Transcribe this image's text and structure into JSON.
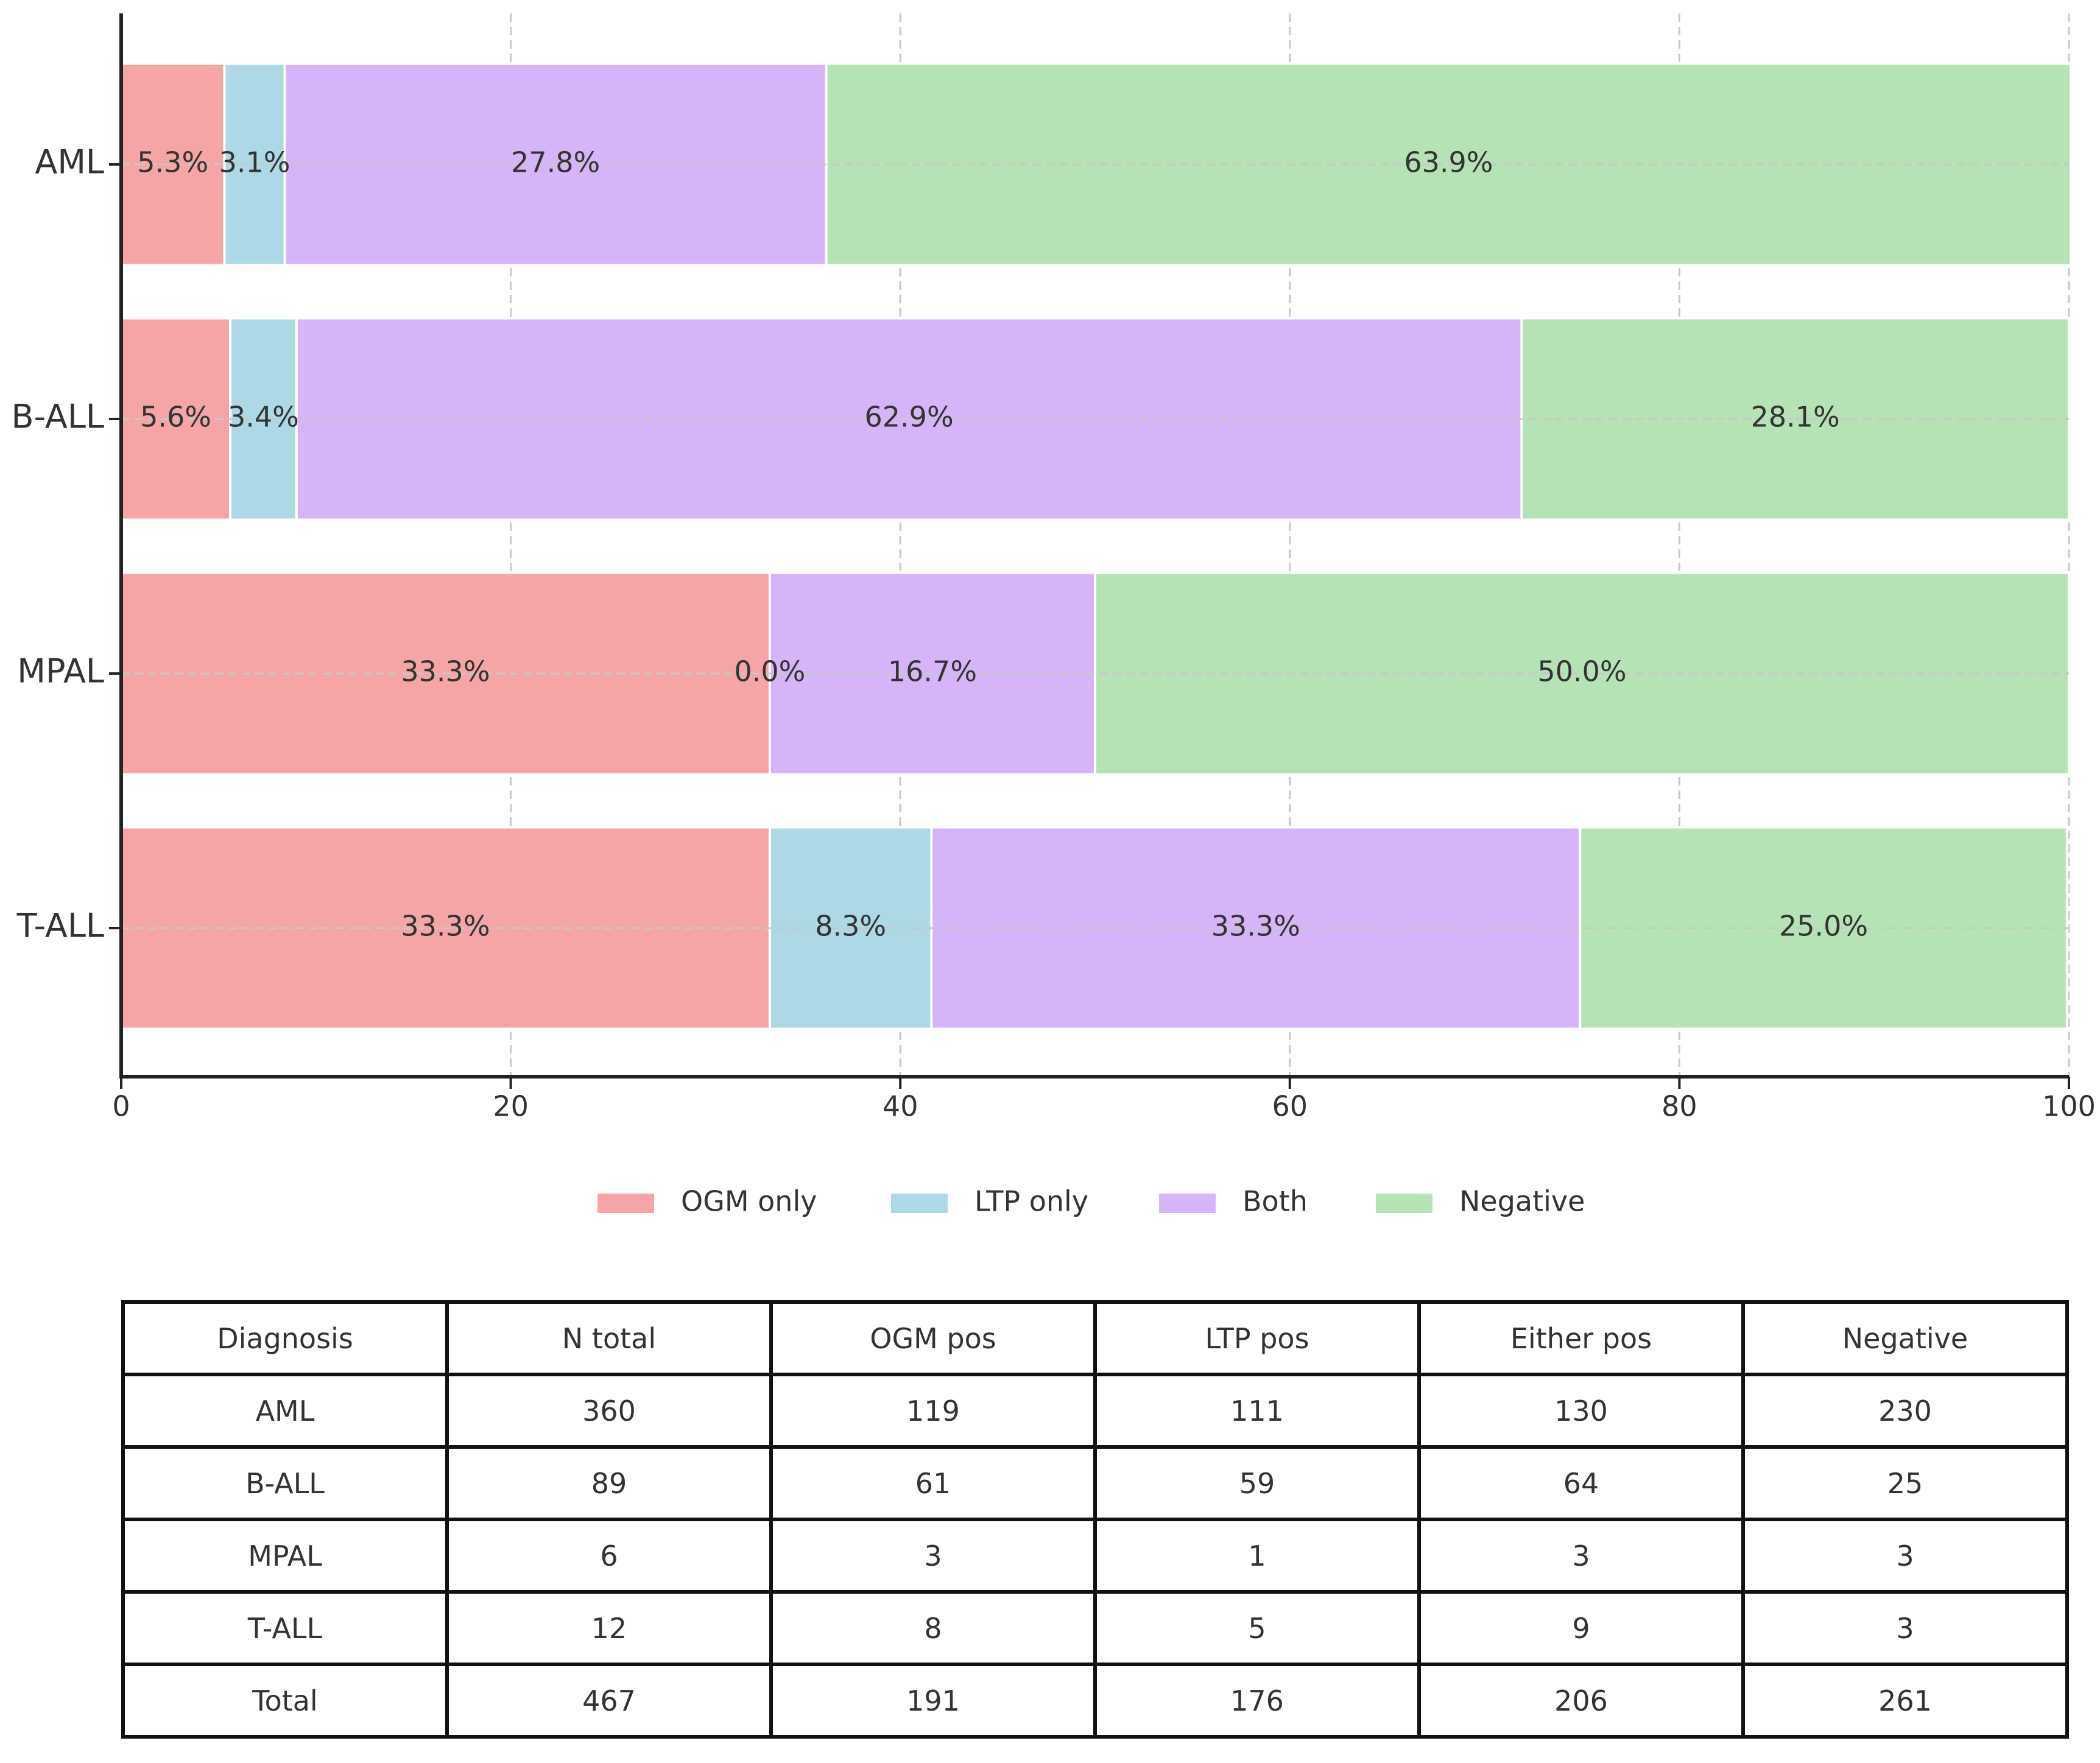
{
  "chart_data": {
    "type": "stacked_barh",
    "categories": [
      "AML",
      "B-ALL",
      "MPAL",
      "T-ALL"
    ],
    "series": [
      {
        "name": "OGM only",
        "color": "#f5a5a5",
        "values": [
          5.3,
          5.6,
          33.3,
          33.3
        ],
        "value_labels": [
          "5.3%",
          "5.6%",
          "33.3%",
          "33.3%"
        ]
      },
      {
        "name": "LTP only",
        "color": "#add8e6",
        "values": [
          3.1,
          3.4,
          0.0,
          8.3
        ],
        "value_labels": [
          "3.1%",
          "3.4%",
          "0.0%",
          "8.3%"
        ]
      },
      {
        "name": "Both",
        "color": "#d6b4f8",
        "values": [
          27.8,
          62.9,
          16.7,
          33.3
        ],
        "value_labels": [
          "27.8%",
          "62.9%",
          "16.7%",
          "33.3%"
        ]
      },
      {
        "name": "Negative",
        "color": "#b6e3b6",
        "values": [
          63.9,
          28.1,
          50.0,
          25.0
        ],
        "value_labels": [
          "63.9%",
          "28.1%",
          "50.0%",
          "25.0%"
        ]
      }
    ],
    "xlim": [
      0,
      100
    ],
    "xticks": [
      0,
      20,
      40,
      60,
      80,
      100
    ],
    "grid": true,
    "legend": "bottom"
  },
  "table": {
    "columns": [
      "Diagnosis",
      "N total",
      "OGM pos",
      "LTP pos",
      "Either pos",
      "Negative"
    ],
    "rows": [
      [
        "AML",
        360,
        119,
        111,
        130,
        230
      ],
      [
        "B-ALL",
        89,
        61,
        59,
        64,
        25
      ],
      [
        "MPAL",
        6,
        3,
        1,
        3,
        3
      ],
      [
        "T-ALL",
        12,
        8,
        5,
        9,
        3
      ],
      [
        "Total",
        467,
        191,
        176,
        206,
        261
      ]
    ]
  }
}
